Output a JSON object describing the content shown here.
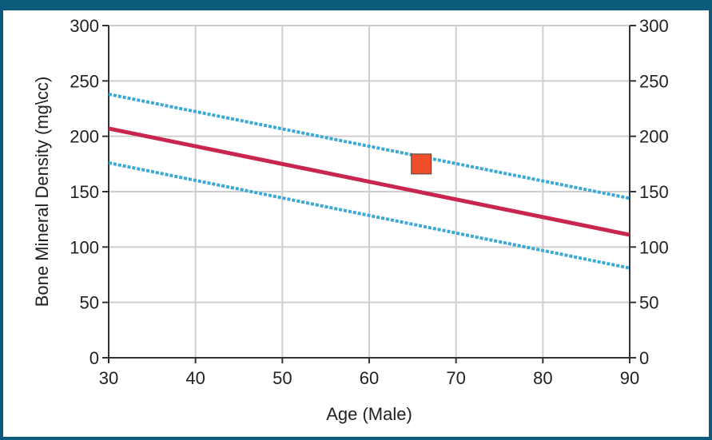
{
  "chart_data": {
    "type": "line",
    "xlabel": "Age (Male)",
    "ylabel": "Bone Mineral Density (mg\\cc)",
    "xlim": [
      30,
      90
    ],
    "ylim": [
      0,
      300
    ],
    "x_ticks": [
      "30",
      "40",
      "50",
      "60",
      "70",
      "80",
      "90"
    ],
    "y_ticks": [
      "0",
      "50",
      "100",
      "150",
      "200",
      "250",
      "300"
    ],
    "grid": true,
    "series": [
      {
        "role": "upper-limit",
        "style": "dotted",
        "color": "#3aa9d6",
        "x": [
          30,
          90
        ],
        "y": [
          238,
          144
        ]
      },
      {
        "role": "mean",
        "style": "solid",
        "color": "#c8254f",
        "x": [
          30,
          90
        ],
        "y": [
          207,
          111
        ]
      },
      {
        "role": "lower-limit",
        "style": "dotted",
        "color": "#3aa9d6",
        "x": [
          30,
          90
        ],
        "y": [
          176,
          81
        ]
      }
    ],
    "points": [
      {
        "x": 66,
        "y": 175,
        "marker": "square",
        "color": "#f04e2a"
      }
    ]
  }
}
